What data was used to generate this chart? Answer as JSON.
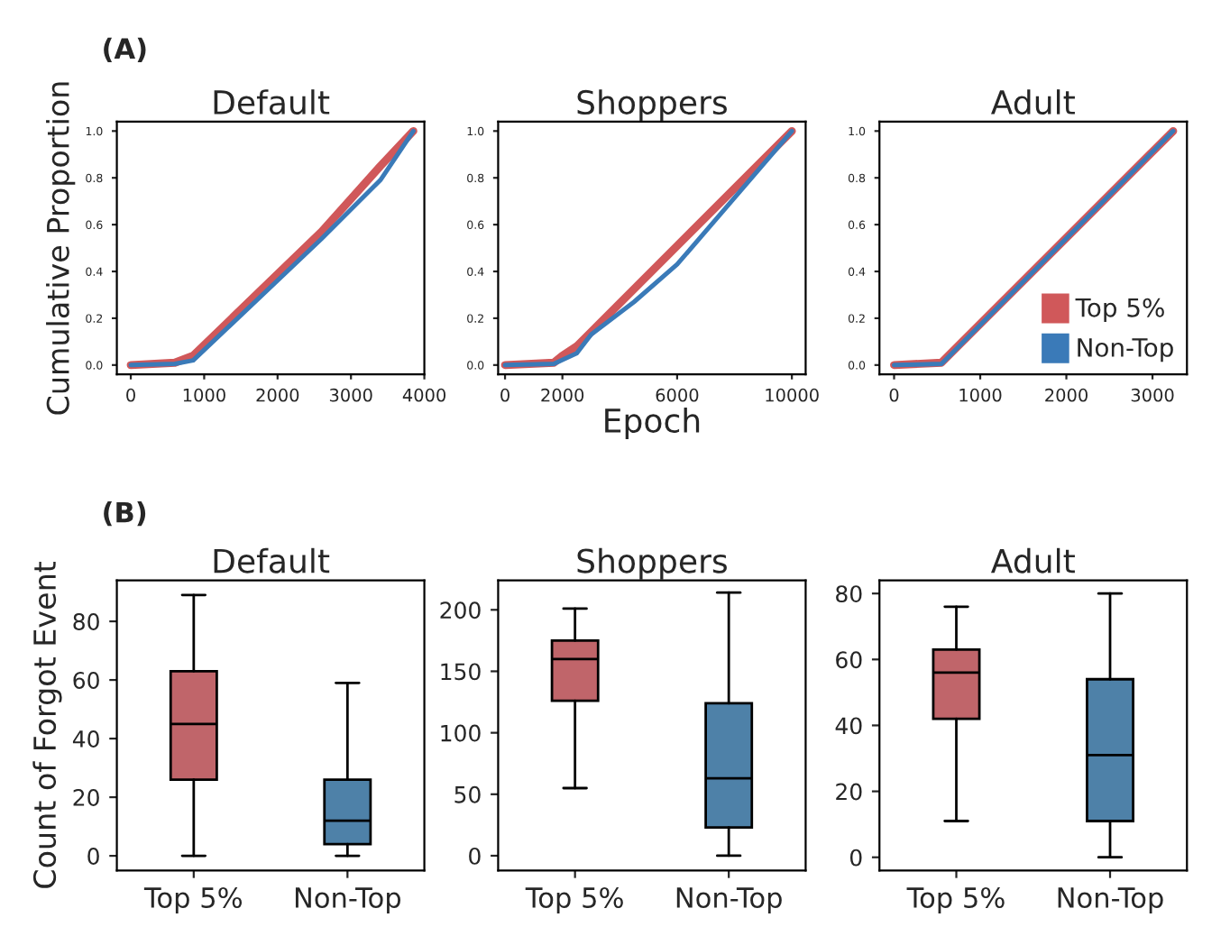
{
  "chart_data": [
    {
      "type": "line",
      "title": "Default",
      "ylabel": "Cumulative Proportion",
      "annotations": [
        "(A)"
      ],
      "xlim": [
        -190,
        4000
      ],
      "xticks": [
        0,
        1000,
        2000,
        3000,
        4000
      ],
      "ylim": [
        -0.04,
        1.04
      ],
      "yticks": [
        {
          "value": 0,
          "label": "0.0"
        },
        {
          "value": 0.2,
          "label": "0.2"
        },
        {
          "value": 0.4,
          "label": "0.4"
        },
        {
          "value": 0.6,
          "label": "0.6"
        },
        {
          "value": 0.8,
          "label": "0.8"
        },
        {
          "value": 1,
          "label": "1.0"
        }
      ],
      "legend": false,
      "series": [
        {
          "color": "#d0585a",
          "x": [
            0,
            600,
            850,
            2600,
            3400,
            3850
          ],
          "values": [
            0,
            0.01,
            0.04,
            0.57,
            0.85,
            1.0
          ]
        },
        {
          "color": "#3a7ab8",
          "x": [
            0,
            600,
            850,
            2600,
            3400,
            3850
          ],
          "values": [
            0,
            0.005,
            0.02,
            0.54,
            0.79,
            1.0
          ]
        }
      ]
    },
    {
      "type": "line",
      "title": "Shoppers",
      "xlabel": "Epoch",
      "xlim": [
        -240,
        10480
      ],
      "xticks": [
        0,
        2000,
        6000,
        10000
      ],
      "ylim": [
        -0.04,
        1.04
      ],
      "yticks": [
        {
          "value": 0,
          "label": "0.0"
        },
        {
          "value": 0.2,
          "label": "0.2"
        },
        {
          "value": 0.4,
          "label": "0.4"
        },
        {
          "value": 0.6,
          "label": "0.6"
        },
        {
          "value": 0.8,
          "label": "0.8"
        },
        {
          "value": 1,
          "label": "1.0"
        }
      ],
      "legend": false,
      "series": [
        {
          "color": "#d0585a",
          "x": [
            0,
            1700,
            2000,
            2500,
            10000
          ],
          "values": [
            0,
            0.01,
            0.04,
            0.08,
            1.0
          ]
        },
        {
          "color": "#3a7ab8",
          "x": [
            0,
            1700,
            2500,
            3000,
            4500,
            6000,
            10000
          ],
          "values": [
            0,
            0.005,
            0.05,
            0.13,
            0.27,
            0.43,
            1.0
          ]
        }
      ]
    },
    {
      "type": "line",
      "title": "Adult",
      "xlim": [
        -170,
        3400
      ],
      "xticks": [
        0,
        1000,
        2000,
        3000
      ],
      "ylim": [
        -0.04,
        1.04
      ],
      "yticks": [
        {
          "value": 0,
          "label": "0.0"
        },
        {
          "value": 0.2,
          "label": "0.2"
        },
        {
          "value": 0.4,
          "label": "0.4"
        },
        {
          "value": 0.6,
          "label": "0.6"
        },
        {
          "value": 0.8,
          "label": "0.8"
        },
        {
          "value": 1,
          "label": "1.0"
        }
      ],
      "legend": "bottom right",
      "series": [
        {
          "name": "Top 5%",
          "color": "#d0585a",
          "x": [
            0,
            550,
            3240
          ],
          "values": [
            0,
            0.01,
            1.0
          ]
        },
        {
          "name": "Non-Top",
          "color": "#3a7ab8",
          "x": [
            0,
            550,
            3240
          ],
          "values": [
            0,
            0.005,
            1.0
          ]
        }
      ]
    },
    {
      "type": "box",
      "title": "Default",
      "ylabel": "Count of Forgot Event",
      "annotations": [
        "(B)"
      ],
      "categories": [
        "Top 5%",
        "Non-Top"
      ],
      "colors": [
        "#c0656a",
        "#4e81a8"
      ],
      "ylim": [
        -5,
        94
      ],
      "yticks": [
        0,
        20,
        40,
        60,
        80
      ],
      "boxes": [
        {
          "low": 0,
          "q1": 26,
          "median": 45,
          "q3": 63,
          "high": 89
        },
        {
          "low": 0,
          "q1": 4,
          "median": 12,
          "q3": 26,
          "high": 59
        }
      ]
    },
    {
      "type": "box",
      "title": "Shoppers",
      "categories": [
        "Top 5%",
        "Non-Top"
      ],
      "colors": [
        "#c0656a",
        "#4e81a8"
      ],
      "ylim": [
        -12,
        224
      ],
      "yticks": [
        0,
        50,
        100,
        150,
        200
      ],
      "boxes": [
        {
          "low": 55,
          "q1": 126,
          "median": 160,
          "q3": 175,
          "high": 201
        },
        {
          "low": 0,
          "q1": 23,
          "median": 63,
          "q3": 124,
          "high": 214
        }
      ]
    },
    {
      "type": "box",
      "title": "Adult",
      "categories": [
        "Top 5%",
        "Non-Top"
      ],
      "colors": [
        "#c0656a",
        "#4e81a8"
      ],
      "ylim": [
        -4,
        84
      ],
      "yticks": [
        0,
        20,
        40,
        60,
        80
      ],
      "boxes": [
        {
          "low": 11,
          "q1": 42,
          "median": 56,
          "q3": 63,
          "high": 76
        },
        {
          "low": 0,
          "q1": 11,
          "median": 31,
          "q3": 54,
          "high": 80
        }
      ]
    }
  ]
}
